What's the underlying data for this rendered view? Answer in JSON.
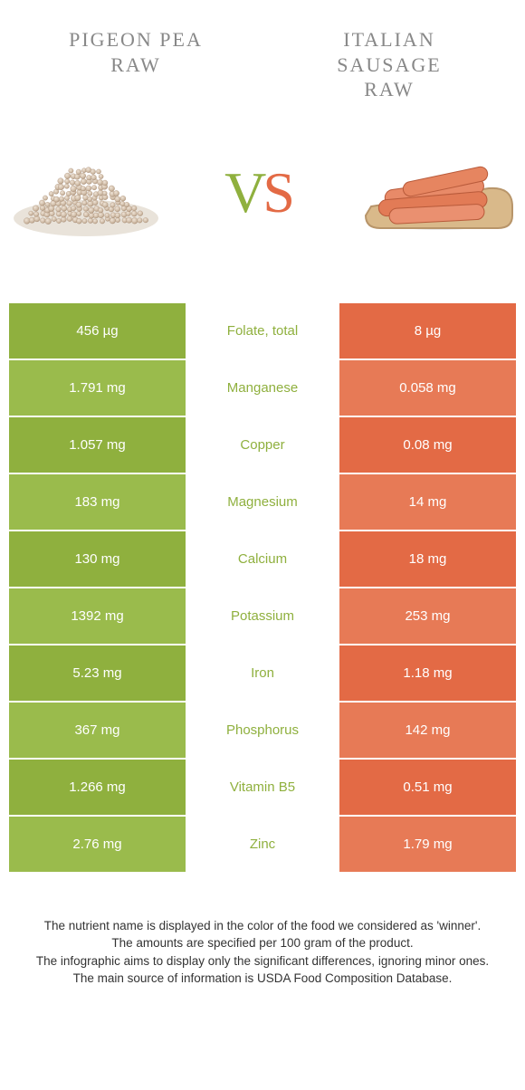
{
  "colors": {
    "left": "#8fb03e",
    "left_alt": "#9abb4c",
    "right": "#e36a45",
    "right_alt": "#e77a56",
    "mid_text_left": "#8fb03e",
    "title_gray": "#888888"
  },
  "food_left": {
    "title_line1": "PIGEON PEA",
    "title_line2": "RAW"
  },
  "food_right": {
    "title_line1": "ITALIAN",
    "title_line2": "SAUSAGE",
    "title_line3": "RAW"
  },
  "vs": {
    "v": "V",
    "s": "S"
  },
  "rows": [
    {
      "left": "456 µg",
      "mid": "Folate, total",
      "right": "8 µg",
      "winner": "left"
    },
    {
      "left": "1.791 mg",
      "mid": "Manganese",
      "right": "0.058 mg",
      "winner": "left"
    },
    {
      "left": "1.057 mg",
      "mid": "Copper",
      "right": "0.08 mg",
      "winner": "left"
    },
    {
      "left": "183 mg",
      "mid": "Magnesium",
      "right": "14 mg",
      "winner": "left"
    },
    {
      "left": "130 mg",
      "mid": "Calcium",
      "right": "18 mg",
      "winner": "left"
    },
    {
      "left": "1392 mg",
      "mid": "Potassium",
      "right": "253 mg",
      "winner": "left"
    },
    {
      "left": "5.23 mg",
      "mid": "Iron",
      "right": "1.18 mg",
      "winner": "left"
    },
    {
      "left": "367 mg",
      "mid": "Phosphorus",
      "right": "142 mg",
      "winner": "left"
    },
    {
      "left": "1.266 mg",
      "mid": "Vitamin B5",
      "right": "0.51 mg",
      "winner": "left"
    },
    {
      "left": "2.76 mg",
      "mid": "Zinc",
      "right": "1.79 mg",
      "winner": "left"
    }
  ],
  "footer": {
    "l1": "The nutrient name is displayed in the color of the food we considered as 'winner'.",
    "l2": "The amounts are specified per 100 gram of the product.",
    "l3": "The infographic aims to display only the significant differences, ignoring minor ones.",
    "l4": "The main source of information is USDA Food Composition Database."
  }
}
